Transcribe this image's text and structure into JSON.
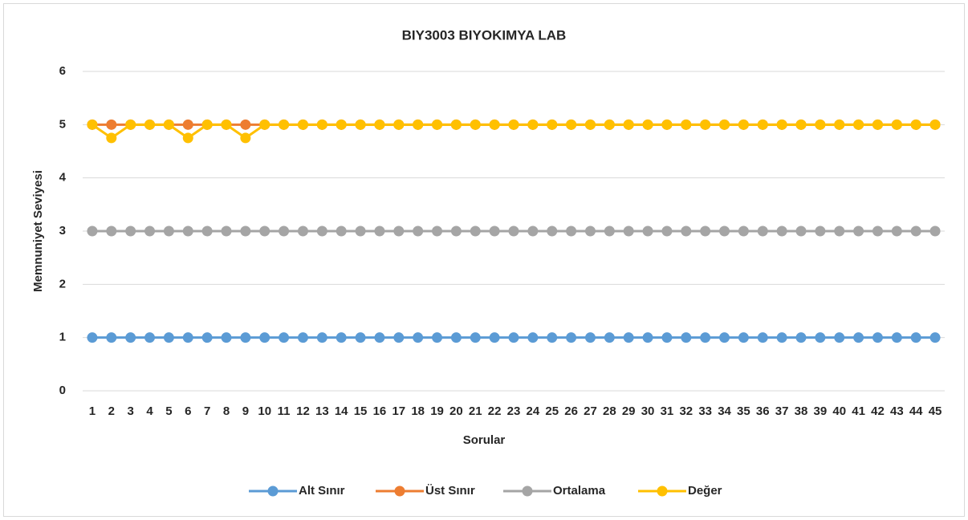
{
  "chart_data": {
    "type": "line",
    "title": "BIY3003 BIYOKIMYA LAB",
    "x_label": "Sorular",
    "y_label": "Memnuniyet Seviyesi",
    "categories": [
      "1",
      "2",
      "3",
      "4",
      "5",
      "6",
      "7",
      "8",
      "9",
      "10",
      "11",
      "12",
      "13",
      "14",
      "15",
      "16",
      "17",
      "18",
      "19",
      "20",
      "21",
      "22",
      "23",
      "24",
      "25",
      "26",
      "27",
      "28",
      "29",
      "30",
      "31",
      "32",
      "33",
      "34",
      "35",
      "36",
      "37",
      "38",
      "39",
      "40",
      "41",
      "42",
      "43",
      "44",
      "45"
    ],
    "series": [
      {
        "name": "Alt Sınır",
        "color": "#5b9bd5",
        "values": [
          1,
          1,
          1,
          1,
          1,
          1,
          1,
          1,
          1,
          1,
          1,
          1,
          1,
          1,
          1,
          1,
          1,
          1,
          1,
          1,
          1,
          1,
          1,
          1,
          1,
          1,
          1,
          1,
          1,
          1,
          1,
          1,
          1,
          1,
          1,
          1,
          1,
          1,
          1,
          1,
          1,
          1,
          1,
          1,
          1
        ]
      },
      {
        "name": "Üst Sınır",
        "color": "#ed7d31",
        "values": [
          5,
          5,
          5,
          5,
          5,
          5,
          5,
          5,
          5,
          5,
          5,
          5,
          5,
          5,
          5,
          5,
          5,
          5,
          5,
          5,
          5,
          5,
          5,
          5,
          5,
          5,
          5,
          5,
          5,
          5,
          5,
          5,
          5,
          5,
          5,
          5,
          5,
          5,
          5,
          5,
          5,
          5,
          5,
          5,
          5
        ]
      },
      {
        "name": "Ortalama",
        "color": "#a5a5a5",
        "values": [
          3,
          3,
          3,
          3,
          3,
          3,
          3,
          3,
          3,
          3,
          3,
          3,
          3,
          3,
          3,
          3,
          3,
          3,
          3,
          3,
          3,
          3,
          3,
          3,
          3,
          3,
          3,
          3,
          3,
          3,
          3,
          3,
          3,
          3,
          3,
          3,
          3,
          3,
          3,
          3,
          3,
          3,
          3,
          3,
          3
        ]
      },
      {
        "name": "Değer",
        "color": "#ffc000",
        "values": [
          5,
          4.75,
          5,
          5,
          5,
          4.75,
          5,
          5,
          4.75,
          5,
          5,
          5,
          5,
          5,
          5,
          5,
          5,
          5,
          5,
          5,
          5,
          5,
          5,
          5,
          5,
          5,
          5,
          5,
          5,
          5,
          5,
          5,
          5,
          5,
          5,
          5,
          5,
          5,
          5,
          5,
          5,
          5,
          5,
          5,
          5
        ]
      }
    ],
    "ylim": [
      0,
      6
    ],
    "yticks": [
      0,
      1,
      2,
      3,
      4,
      5,
      6
    ],
    "grid": true,
    "legend": "bottom"
  }
}
